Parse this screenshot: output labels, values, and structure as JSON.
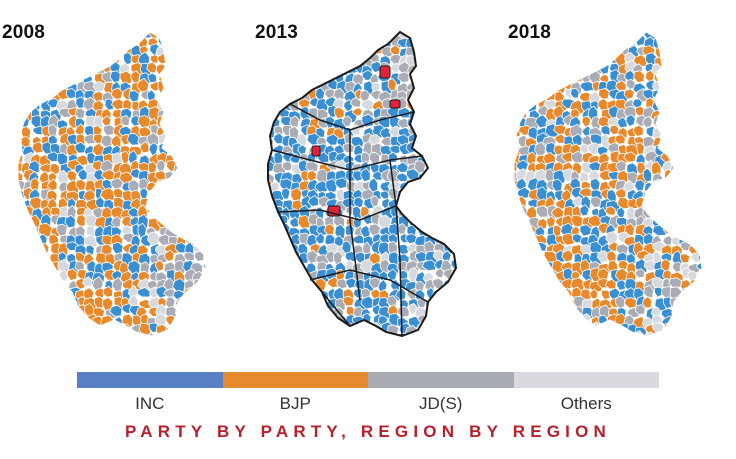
{
  "colors": {
    "inc": "#3a8fd3",
    "bjp": "#e8892c",
    "jds": "#a9acb4",
    "others": "#d6d9de",
    "highlight": "#e0233a",
    "boundary": "#ffffff",
    "region_border": "#1a1a1a",
    "title": "#b5202b",
    "legend_inc": "#5a7fc4",
    "legend_bjp": "#e58a2e",
    "legend_jds": "#a9abb2",
    "legend_others": "#d9dadf"
  },
  "maps": [
    {
      "year": "2008",
      "dominant": "bjp",
      "mix": {
        "inc": 0.32,
        "bjp": 0.45,
        "jds": 0.15,
        "others": 0.08
      }
    },
    {
      "year": "2013",
      "dominant": "inc",
      "mix": {
        "inc": 0.55,
        "bjp": 0.12,
        "jds": 0.25,
        "others": 0.08
      }
    },
    {
      "year": "2018",
      "dominant": "bjp",
      "mix": {
        "inc": 0.34,
        "bjp": 0.4,
        "jds": 0.18,
        "others": 0.08
      }
    }
  ],
  "legend": [
    {
      "key": "inc",
      "label": "INC"
    },
    {
      "key": "bjp",
      "label": "BJP"
    },
    {
      "key": "jds",
      "label": "JD(S)"
    },
    {
      "key": "others",
      "label": "Others"
    }
  ],
  "footer": {
    "title": "PARTY BY PARTY, REGION BY REGION"
  }
}
